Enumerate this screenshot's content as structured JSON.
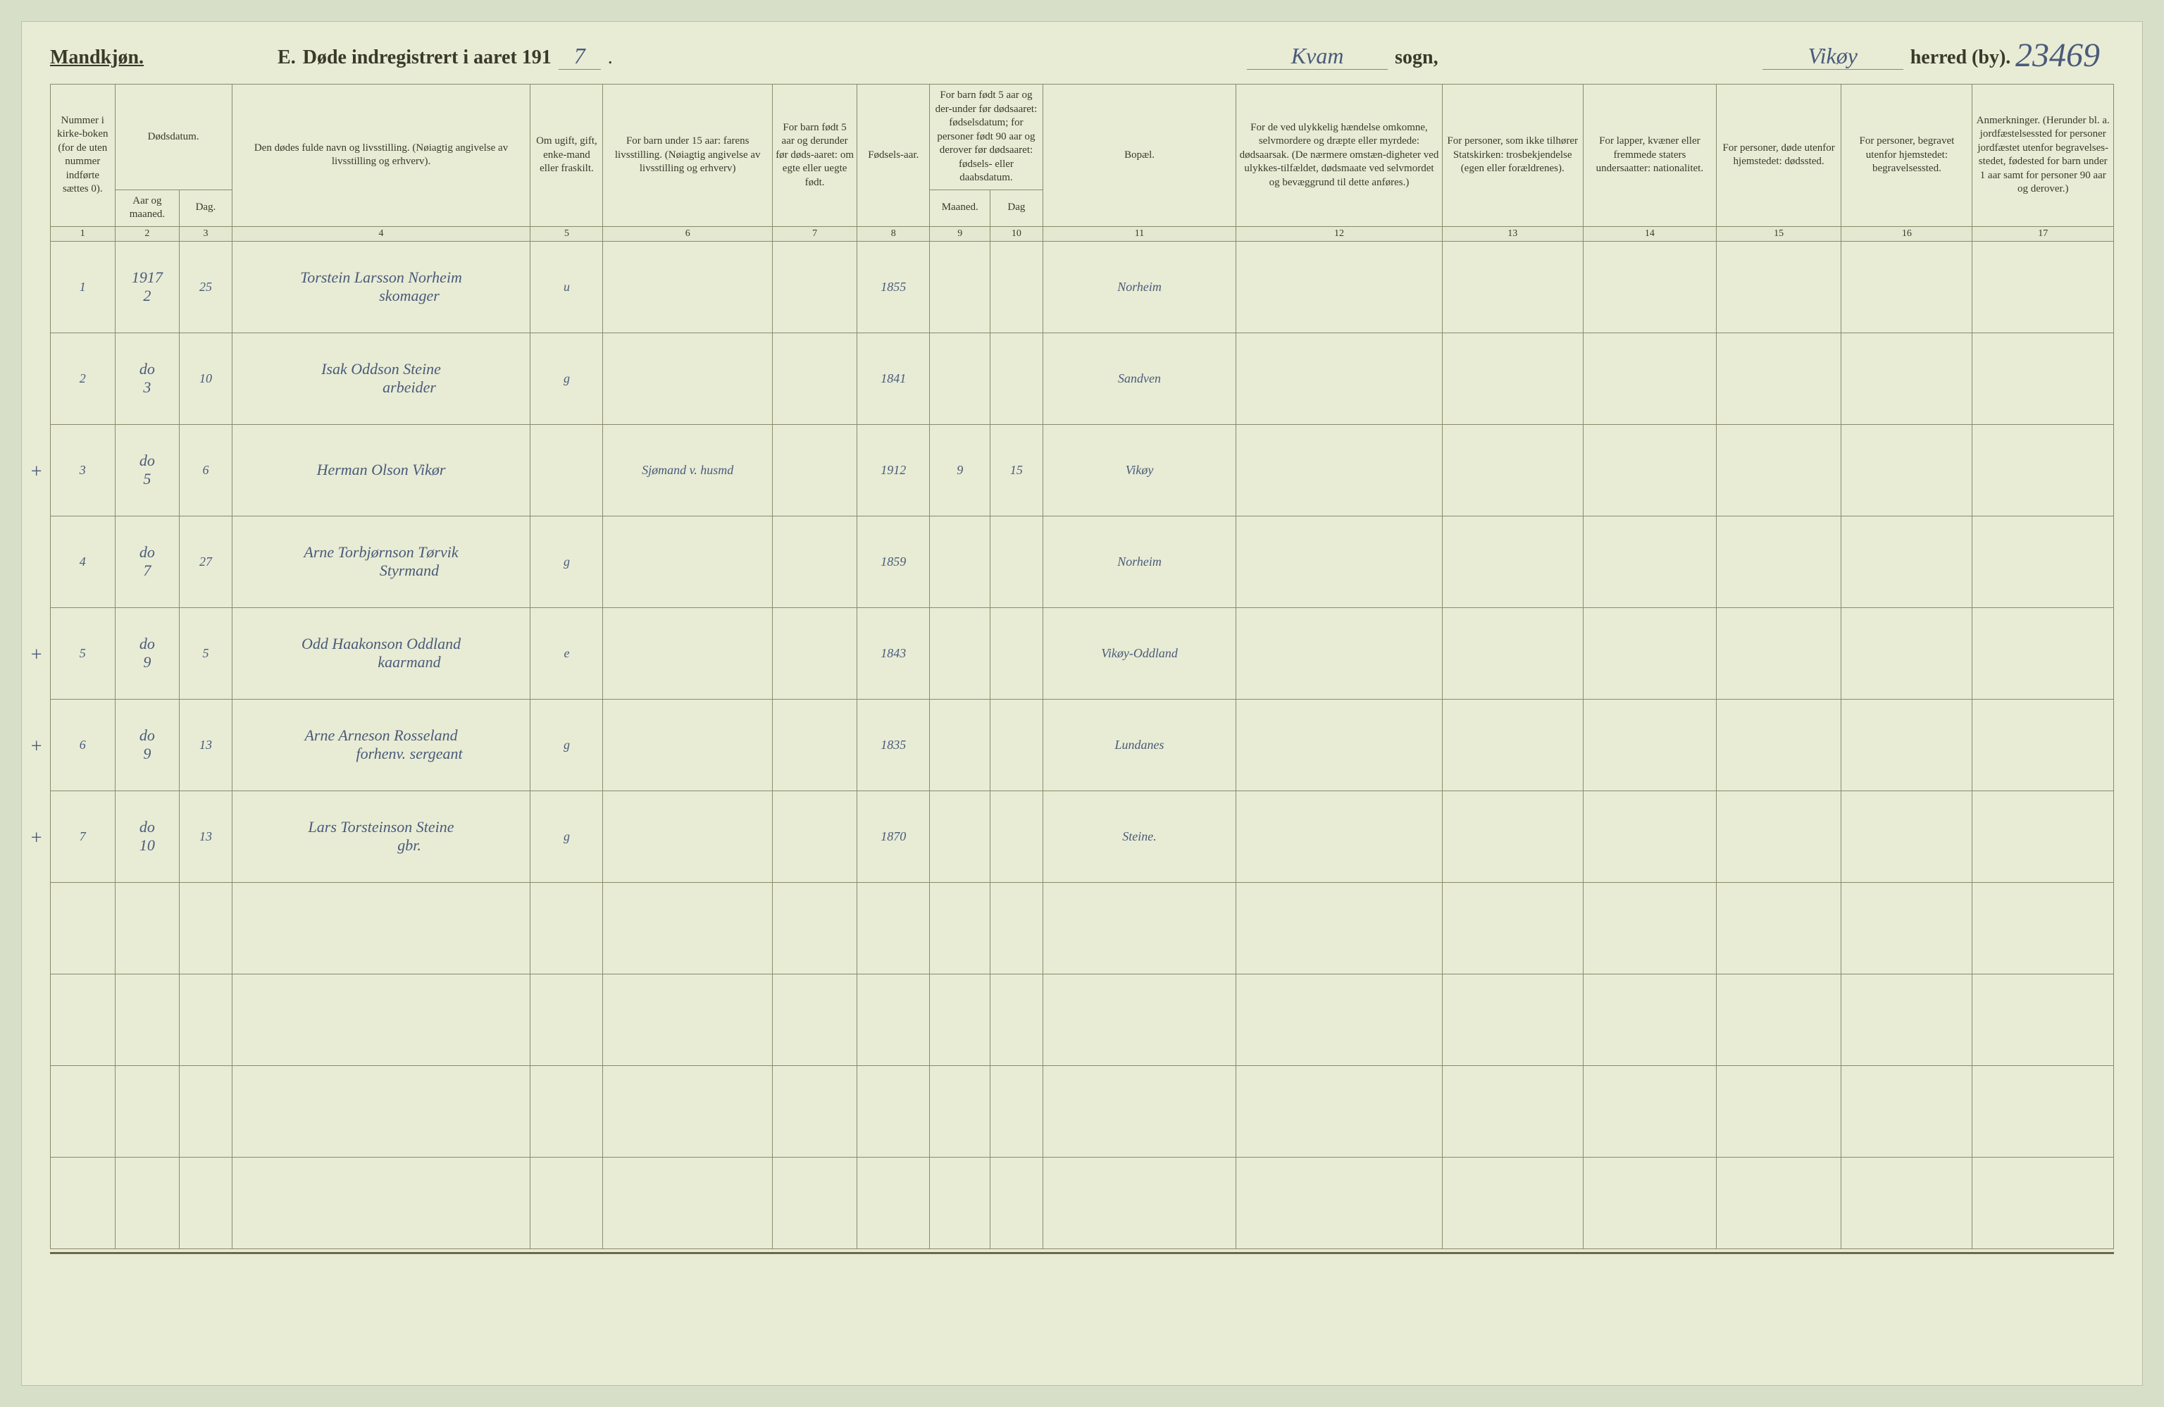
{
  "annotation_top_right": "23469",
  "header": {
    "gender": "Mandkjøn.",
    "section_letter": "E.",
    "title_prefix": "Døde indregistrert i aaret 191",
    "year_suffix": "7",
    "sogn_value": "Kvam",
    "sogn_label": "sogn,",
    "herred_value": "Vikøy",
    "herred_label": "herred (by)."
  },
  "columns": {
    "c1": "Nummer i kirke-boken (for de uten nummer indførte sættes 0).",
    "c2_group": "Dødsdatum.",
    "c2": "Aar og maaned.",
    "c3": "Dag.",
    "c4": "Den dødes fulde navn og livsstilling. (Nøiagtig angivelse av livsstilling og erhverv).",
    "c5": "Om ugift, gift, enke-mand eller fraskilt.",
    "c6": "For barn under 15 aar: farens livsstilling. (Nøiagtig angivelse av livsstilling og erhverv)",
    "c7": "For barn født 5 aar og derunder før døds-aaret: om egte eller uegte født.",
    "c8": "Fødsels-aar.",
    "c9_10_group": "For barn født 5 aar og der-under før dødsaaret: fødselsdatum; for personer født 90 aar og derover før dødsaaret: fødsels- eller daabsdatum.",
    "c9": "Maaned.",
    "c10": "Dag",
    "c11": "Bopæl.",
    "c12": "For de ved ulykkelig hændelse omkomne, selvmordere og dræpte eller myrdede: dødsaarsak. (De nærmere omstæn-digheter ved ulykkes-tilfældet, dødsmaate ved selvmordet og bevæggrund til dette anføres.)",
    "c13": "For personer, som ikke tilhører Statskirken: trosbekjendelse (egen eller forældrenes).",
    "c14": "For lapper, kvæner eller fremmede staters undersaatter: nationalitet.",
    "c15": "For personer, døde utenfor hjemstedet: dødssted.",
    "c16": "For personer, begravet utenfor hjemstedet: begravelsessted.",
    "c17": "Anmerkninger. (Herunder bl. a. jordfæstelsessted for personer jordfæstet utenfor begravelses-stedet, fødested for barn under 1 aar samt for personer 90 aar og derover.)"
  },
  "colnums": [
    "1",
    "2",
    "3",
    "4",
    "5",
    "6",
    "7",
    "8",
    "9",
    "10",
    "11",
    "12",
    "13",
    "14",
    "15",
    "16",
    "17"
  ],
  "rows": [
    {
      "marker": "",
      "num": "1",
      "aar_top": "1917",
      "aar_bot": "2",
      "dag": "25",
      "navn": "Torstein Larsson Norheim",
      "navn2": "skomager",
      "c5": "u",
      "c6": "",
      "c7": "",
      "faar": "1855",
      "c9": "",
      "c10": "",
      "bopael": "Norheim",
      "c12": "",
      "c13": "",
      "c14": "",
      "c15": "",
      "c16": "",
      "c17": ""
    },
    {
      "marker": "",
      "num": "2",
      "aar_top": "do",
      "aar_bot": "3",
      "dag": "10",
      "navn": "Isak Oddson Steine",
      "navn2": "arbeider",
      "c5": "g",
      "c6": "",
      "c7": "",
      "faar": "1841",
      "c9": "",
      "c10": "",
      "bopael": "Sandven",
      "c12": "",
      "c13": "",
      "c14": "",
      "c15": "",
      "c16": "",
      "c17": ""
    },
    {
      "marker": "+",
      "num": "3",
      "aar_top": "do",
      "aar_bot": "5",
      "dag": "6",
      "navn": "Herman Olson Vikør",
      "navn2": "",
      "c5": "",
      "c6": "Sjømand v. husmd",
      "c7": "",
      "faar": "1912",
      "c9": "9",
      "c10": "15",
      "bopael": "Vikøy",
      "c12": "",
      "c13": "",
      "c14": "",
      "c15": "",
      "c16": "",
      "c17": ""
    },
    {
      "marker": "",
      "num": "4",
      "aar_top": "do",
      "aar_bot": "7",
      "dag": "27",
      "navn": "Arne Torbjørnson Tørvik",
      "navn2": "Styrmand",
      "c5": "g",
      "c6": "",
      "c7": "",
      "faar": "1859",
      "c9": "",
      "c10": "",
      "bopael": "Norheim",
      "c12": "",
      "c13": "",
      "c14": "",
      "c15": "",
      "c16": "",
      "c17": ""
    },
    {
      "marker": "+",
      "num": "5",
      "aar_top": "do",
      "aar_bot": "9",
      "dag": "5",
      "navn": "Odd Haakonson Oddland",
      "navn2": "kaarmand",
      "c5": "e",
      "c6": "",
      "c7": "",
      "faar": "1843",
      "c9": "",
      "c10": "",
      "bopael": "Vikøy-Oddland",
      "c12": "",
      "c13": "",
      "c14": "",
      "c15": "",
      "c16": "",
      "c17": ""
    },
    {
      "marker": "+",
      "num": "6",
      "aar_top": "do",
      "aar_bot": "9",
      "dag": "13",
      "navn": "Arne Arneson Rosseland",
      "navn2": "forhenv. sergeant",
      "c5": "g",
      "c6": "",
      "c7": "",
      "faar": "1835",
      "c9": "",
      "c10": "",
      "bopael": "Lundanes",
      "c12": "",
      "c13": "",
      "c14": "",
      "c15": "",
      "c16": "",
      "c17": ""
    },
    {
      "marker": "+",
      "num": "7",
      "aar_top": "do",
      "aar_bot": "10",
      "dag": "13",
      "navn": "Lars Torsteinson Steine",
      "navn2": "gbr.",
      "c5": "g",
      "c6": "",
      "c7": "",
      "faar": "1870",
      "c9": "",
      "c10": "",
      "bopael": "Steine.",
      "c12": "",
      "c13": "",
      "c14": "",
      "c15": "",
      "c16": "",
      "c17": ""
    }
  ],
  "empty_rows": 4,
  "col_widths_pct": [
    3.2,
    3.2,
    2.6,
    14.8,
    3.6,
    8.4,
    4.2,
    3.6,
    3.0,
    2.6,
    9.6,
    10.2,
    7.0,
    6.6,
    6.2,
    6.5,
    7.0
  ],
  "colors": {
    "page_bg": "#e8ecd5",
    "body_bg": "#d8dfc8",
    "border": "#8a8a6a",
    "ink_print": "#3a3a2a",
    "ink_hand": "#4a5a7a"
  }
}
